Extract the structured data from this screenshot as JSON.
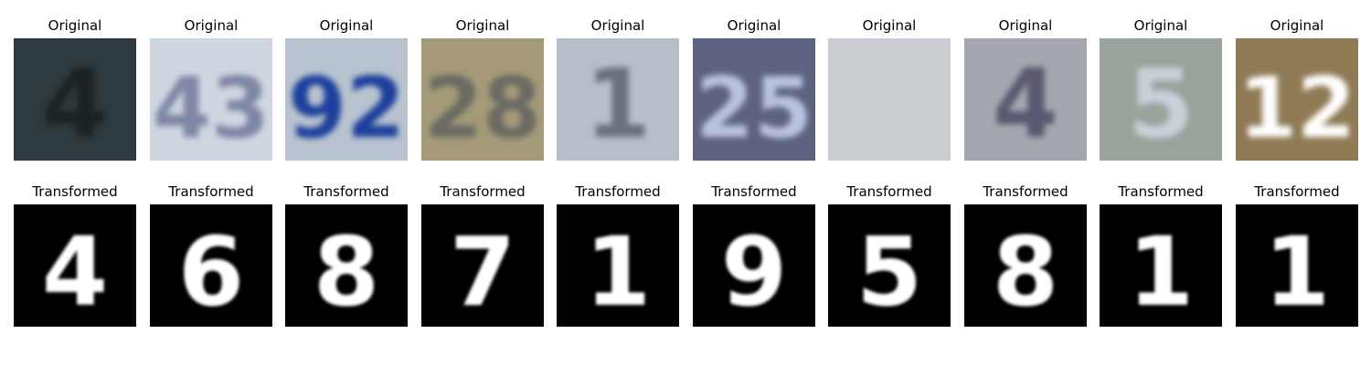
{
  "rows": [
    {
      "label": "Original",
      "panels": [
        {
          "digits": "4",
          "bg": "#2e3a3e",
          "fg": "#1b2420"
        },
        {
          "digits": "43",
          "bg": "#cfd6e0",
          "fg": "#7f86a6"
        },
        {
          "digits": "92",
          "bg": "#b9c3cf",
          "fg": "#1f3f9c"
        },
        {
          "digits": "28",
          "bg": "#a59a78",
          "fg": "#6b6a63"
        },
        {
          "digits": "1",
          "bg": "#b7bec8",
          "fg": "#6b6f7f"
        },
        {
          "digits": "25",
          "bg": "#5d6280",
          "fg": "#b9c2e0"
        },
        {
          "digits": "",
          "bg": "#c9ccd1",
          "fg": "#b5b8bd"
        },
        {
          "digits": "4",
          "bg": "#a4a7b0",
          "fg": "#5a5870"
        },
        {
          "digits": "5",
          "bg": "#9aa29c",
          "fg": "#c8d1d8"
        },
        {
          "digits": "12",
          "bg": "#8f7a55",
          "fg": "#ffffff"
        }
      ]
    },
    {
      "label": "Transformed",
      "panels": [
        {
          "digits": "4",
          "bg": "#000000",
          "fg": "#ffffff"
        },
        {
          "digits": "6",
          "bg": "#000000",
          "fg": "#ffffff"
        },
        {
          "digits": "8",
          "bg": "#000000",
          "fg": "#ffffff"
        },
        {
          "digits": "7",
          "bg": "#000000",
          "fg": "#ffffff"
        },
        {
          "digits": "1",
          "bg": "#000000",
          "fg": "#ffffff"
        },
        {
          "digits": "9",
          "bg": "#000000",
          "fg": "#ffffff"
        },
        {
          "digits": "5",
          "bg": "#000000",
          "fg": "#ffffff"
        },
        {
          "digits": "8",
          "bg": "#000000",
          "fg": "#ffffff"
        },
        {
          "digits": "1",
          "bg": "#000000",
          "fg": "#ffffff"
        },
        {
          "digits": "1",
          "bg": "#000000",
          "fg": "#ffffff"
        }
      ]
    }
  ]
}
